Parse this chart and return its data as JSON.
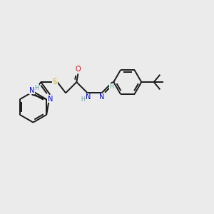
{
  "background_color": "#ebebeb",
  "bond_color": "#1a1a1a",
  "atom_colors": {
    "N": "#0000ff",
    "O": "#ff0000",
    "S": "#ccaa00",
    "H_label": "#4daaaa",
    "C": "#1a1a1a"
  },
  "figsize": [
    3.0,
    3.0
  ],
  "dpi": 100,
  "xlim": [
    0,
    10
  ],
  "ylim": [
    2,
    8
  ]
}
